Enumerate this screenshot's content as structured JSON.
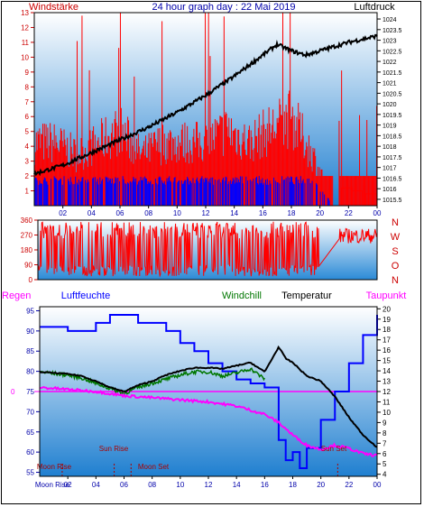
{
  "header": {
    "left_title": "Windstärke",
    "center_title": "24 hour graph day : 22 Mai 2019",
    "right_title": "Luftdruck"
  },
  "colors": {
    "wind": "#ff0000",
    "gust": "#0000ff",
    "pressure": "#000000",
    "humidity": "#0000ff",
    "temperature": "#000000",
    "windchill": "#007700",
    "dewpoint": "#ff00ff",
    "rain": "#ff00ff",
    "sky_top": "#ffffff",
    "sky_bottom": "#1f7fd0"
  },
  "chart_data": [
    {
      "type": "bar",
      "x_ticks": [
        "02",
        "04",
        "06",
        "08",
        "10",
        "12",
        "14",
        "16",
        "18",
        "20",
        "22",
        "00"
      ],
      "x_range": [
        0,
        24
      ],
      "y_left": {
        "label": "Windstärke",
        "ticks": [
          "1",
          "2",
          "3",
          "4",
          "5",
          "6",
          "7",
          "8",
          "9",
          "10",
          "11",
          "12",
          "13"
        ],
        "range": [
          0,
          13
        ]
      },
      "y_right": {
        "label": "Luftdruck",
        "ticks": [
          "1015.5",
          "1016",
          "1016.5",
          "1017",
          "1017.5",
          "1018",
          "1018.5",
          "1019",
          "1019.5",
          "1020",
          "1020.5",
          "1021",
          "1021.5",
          "1022",
          "1022.5",
          "1023",
          "1023.5",
          "1024"
        ],
        "range": [
          1015.2,
          1024.3
        ]
      },
      "series": [
        {
          "x": [
            0,
            1.5,
            3,
            4.5,
            6,
            7.5,
            9,
            10.5,
            12,
            13.5,
            15,
            16.5,
            18,
            19.5,
            21,
            22.5,
            24
          ],
          "values": [
            5,
            5,
            4,
            5,
            6,
            4,
            5,
            5,
            5,
            6,
            5,
            6,
            7,
            4,
            0,
            1,
            1
          ]
        },
        {
          "x": [
            0,
            1.5,
            3,
            4.5,
            6,
            7.5,
            9,
            10.5,
            12,
            13.5,
            15,
            16.5,
            18,
            19.5,
            21,
            22.5,
            24
          ],
          "values": [
            2,
            2,
            2,
            2,
            2,
            2,
            2,
            2,
            2,
            2,
            2,
            2,
            2,
            2,
            0,
            0,
            0
          ]
        },
        {
          "x": [
            0,
            2,
            4,
            6,
            8,
            10,
            12,
            14,
            16,
            17,
            18,
            19,
            20,
            22,
            24
          ],
          "values": [
            1016.7,
            1017.1,
            1017.7,
            1018.3,
            1018.9,
            1019.6,
            1020.4,
            1021.3,
            1022.3,
            1022.8,
            1022.5,
            1022.3,
            1022.5,
            1022.9,
            1023.2
          ]
        }
      ]
    },
    {
      "type": "line",
      "x_range": [
        0,
        24
      ],
      "y_left": {
        "ticks": [
          "0",
          "90",
          "180",
          "270",
          "360"
        ],
        "range": [
          0,
          360
        ]
      },
      "y_right": {
        "ticks": [
          "N",
          "W",
          "S",
          "O",
          "N"
        ]
      },
      "series": [
        {
          "x": [
            0,
            1,
            2,
            3,
            4,
            5,
            6,
            7,
            8,
            9,
            10,
            11,
            12,
            13,
            14,
            15,
            16,
            17,
            18,
            19,
            20,
            21,
            22,
            23,
            24
          ],
          "values": [
            320,
            40,
            300,
            20,
            340,
            60,
            290,
            10,
            330,
            50,
            310,
            30,
            350,
            70,
            300,
            20,
            340,
            60,
            290,
            40,
            0,
            0,
            280,
            200,
            270
          ]
        }
      ]
    },
    {
      "type": "line",
      "x_ticks": [
        "02",
        "04",
        "06",
        "08",
        "10",
        "12",
        "14",
        "16",
        "18",
        "20",
        "22",
        "00"
      ],
      "x_range": [
        0,
        24
      ],
      "y_left": {
        "labels": [
          "Regen",
          "Luftfeuchte"
        ],
        "ticks": [
          "55",
          "60",
          "65",
          "70",
          "75",
          "80",
          "85",
          "90",
          "95"
        ],
        "range": [
          54,
          96
        ]
      },
      "y_right": {
        "labels": [
          "Windchill",
          "Temperatur",
          "Taupunkt"
        ],
        "ticks": [
          "4",
          "5",
          "6",
          "7",
          "8",
          "9",
          "10",
          "11",
          "12",
          "13",
          "14",
          "15",
          "16",
          "17",
          "18",
          "19",
          "20"
        ],
        "range": [
          3.8,
          20.2
        ]
      },
      "rain": {
        "value": "0"
      },
      "series": [
        {
          "x": [
            0,
            2,
            3,
            4,
            5,
            6,
            7,
            8,
            9,
            10,
            11,
            12,
            13,
            14,
            15,
            16,
            17,
            17.5,
            18,
            18.5,
            19,
            20,
            21,
            22,
            23,
            24
          ],
          "values": [
            91,
            90,
            90,
            92,
            94,
            94,
            92,
            92,
            90,
            87,
            85,
            82,
            80,
            78,
            77,
            76,
            63,
            58,
            60,
            56,
            61,
            68,
            75,
            82,
            89,
            94
          ]
        },
        {
          "x": [
            0,
            2,
            3,
            4,
            5,
            6,
            7,
            8,
            9,
            10,
            11,
            12,
            13,
            14,
            15,
            16,
            17,
            17.5,
            18,
            19,
            20,
            21,
            22,
            23,
            24
          ],
          "values": [
            13.9,
            13.7,
            13.5,
            13.0,
            12.4,
            12.0,
            12.6,
            13.0,
            13.6,
            14.0,
            14.3,
            14.3,
            14.2,
            14.5,
            14.8,
            13.9,
            16.3,
            15.2,
            14.8,
            13.5,
            13.0,
            11.5,
            9.5,
            7.8,
            6.6
          ]
        },
        {
          "x": [
            0,
            2,
            3,
            4,
            5,
            6,
            7,
            8,
            9,
            10,
            11,
            12,
            13,
            14,
            15,
            16
          ],
          "values": [
            13.9,
            13.6,
            13.3,
            12.8,
            12.3,
            11.8,
            12.4,
            12.8,
            13.2,
            13.6,
            13.9,
            13.9,
            13.5,
            13.8,
            14.2,
            13.2
          ]
        },
        {
          "x": [
            0,
            2,
            4,
            5,
            6,
            8,
            10,
            12,
            14,
            15,
            16,
            17,
            18,
            19,
            20,
            21,
            22,
            23,
            24
          ],
          "values": [
            12.4,
            12.2,
            12.0,
            11.8,
            11.6,
            11.4,
            11.2,
            11.0,
            10.6,
            10.2,
            9.8,
            9.0,
            7.8,
            6.8,
            6.4,
            6.8,
            6.5,
            6.0,
            5.8
          ]
        }
      ],
      "events": [
        {
          "label": "Moon Rise",
          "x": 1.6
        },
        {
          "label": "Sun Rise",
          "x": 5.3
        },
        {
          "label": "Moon Set",
          "x": 6.5
        },
        {
          "label": "Sun Set",
          "x": 21.2
        }
      ],
      "bottom_label": "Moon Rise"
    }
  ]
}
